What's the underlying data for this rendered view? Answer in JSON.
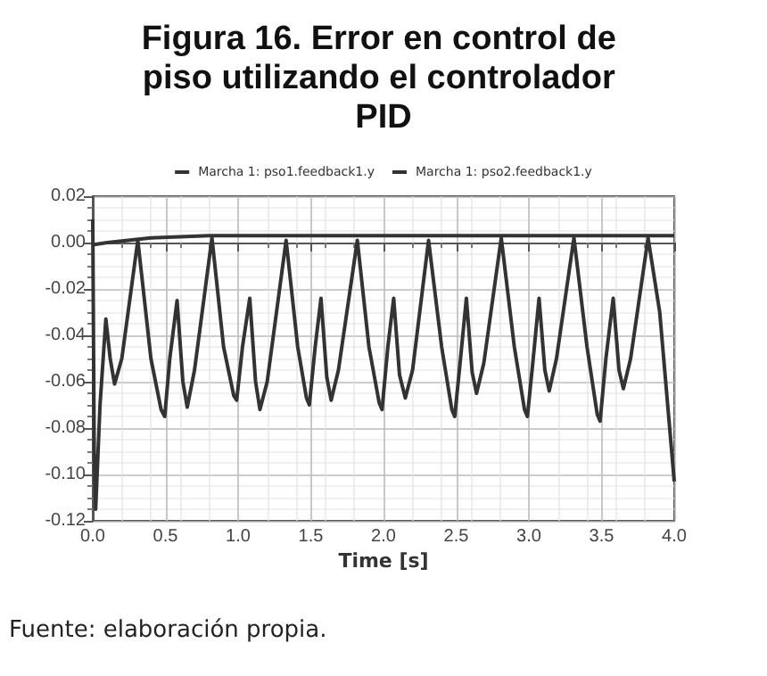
{
  "chart_data": {
    "type": "line",
    "title": "Figura 16. Error en control de piso utilizando el controlador PID",
    "xlabel": "Time [s]",
    "annotations": [
      "Fuente: elaboración propia."
    ],
    "series": [
      {
        "name": "Marcha 1: pso1.feedback1.y",
        "color": "#333333",
        "x": [
          0,
          0.01,
          0.02,
          0.05,
          0.09,
          0.12,
          0.15,
          0.2,
          0.31,
          0.4,
          0.47,
          0.495,
          0.53,
          0.58,
          0.62,
          0.65,
          0.7,
          0.82,
          0.9,
          0.97,
          0.99,
          1.03,
          1.08,
          1.12,
          1.15,
          1.2,
          1.33,
          1.41,
          1.47,
          1.49,
          1.53,
          1.57,
          1.61,
          1.64,
          1.69,
          1.82,
          1.9,
          1.97,
          1.99,
          2.03,
          2.07,
          2.11,
          2.15,
          2.2,
          2.31,
          2.4,
          2.47,
          2.49,
          2.53,
          2.57,
          2.61,
          2.64,
          2.69,
          2.81,
          2.9,
          2.97,
          2.99,
          3.03,
          3.07,
          3.11,
          3.14,
          3.19,
          3.31,
          3.4,
          3.47,
          3.49,
          3.53,
          3.58,
          3.62,
          3.65,
          3.7,
          3.82,
          3.9,
          4.0
        ],
        "values": [
          0.01,
          -0.09,
          -0.115,
          -0.07,
          -0.033,
          -0.05,
          -0.061,
          -0.05,
          0.001,
          -0.05,
          -0.072,
          -0.075,
          -0.05,
          -0.025,
          -0.06,
          -0.071,
          -0.055,
          0.002,
          -0.045,
          -0.066,
          -0.068,
          -0.045,
          -0.024,
          -0.06,
          -0.072,
          -0.06,
          0.001,
          -0.045,
          -0.067,
          -0.07,
          -0.045,
          -0.024,
          -0.058,
          -0.068,
          -0.055,
          0.001,
          -0.045,
          -0.069,
          -0.072,
          -0.045,
          -0.024,
          -0.057,
          -0.067,
          -0.055,
          0.001,
          -0.045,
          -0.072,
          -0.075,
          -0.05,
          -0.024,
          -0.056,
          -0.065,
          -0.052,
          0.002,
          -0.045,
          -0.072,
          -0.075,
          -0.05,
          -0.024,
          -0.055,
          -0.064,
          -0.05,
          0.002,
          -0.045,
          -0.074,
          -0.077,
          -0.05,
          -0.024,
          -0.055,
          -0.063,
          -0.05,
          0.002,
          -0.03,
          -0.103
        ]
      },
      {
        "name": "Marcha 1: pso2.feedback1.y",
        "color": "#333333",
        "x": [
          0,
          0.1,
          0.4,
          0.8,
          1.5,
          2.5,
          3.5,
          4.0
        ],
        "values": [
          -0.001,
          0.0,
          0.002,
          0.003,
          0.003,
          0.003,
          0.003,
          0.003
        ]
      }
    ],
    "xlim": [
      0,
      4
    ],
    "xticks": [
      {
        "value": 0,
        "label": "0.0"
      },
      {
        "value": 0.5,
        "label": "0.5"
      },
      {
        "value": 1,
        "label": "1.0"
      },
      {
        "value": 1.5,
        "label": "1.5"
      },
      {
        "value": 2,
        "label": "2.0"
      },
      {
        "value": 2.5,
        "label": "2.5"
      },
      {
        "value": 3,
        "label": "3.0"
      },
      {
        "value": 3.5,
        "label": "3.5"
      },
      {
        "value": 4,
        "label": "4.0"
      }
    ],
    "ylim": [
      -0.12,
      0.02
    ],
    "yticks": [
      {
        "value": -0.12,
        "label": "-0.12"
      },
      {
        "value": -0.1,
        "label": "-0.10"
      },
      {
        "value": -0.08,
        "label": "-0.08"
      },
      {
        "value": -0.06,
        "label": "-0.06"
      },
      {
        "value": -0.04,
        "label": "-0.04"
      },
      {
        "value": -0.02,
        "label": "-0.02"
      },
      {
        "value": 0,
        "label": "0.00"
      },
      {
        "value": 0.02,
        "label": "0.02"
      }
    ],
    "grid": true,
    "legend": "top",
    "marker": "none",
    "line_style": "solid"
  }
}
